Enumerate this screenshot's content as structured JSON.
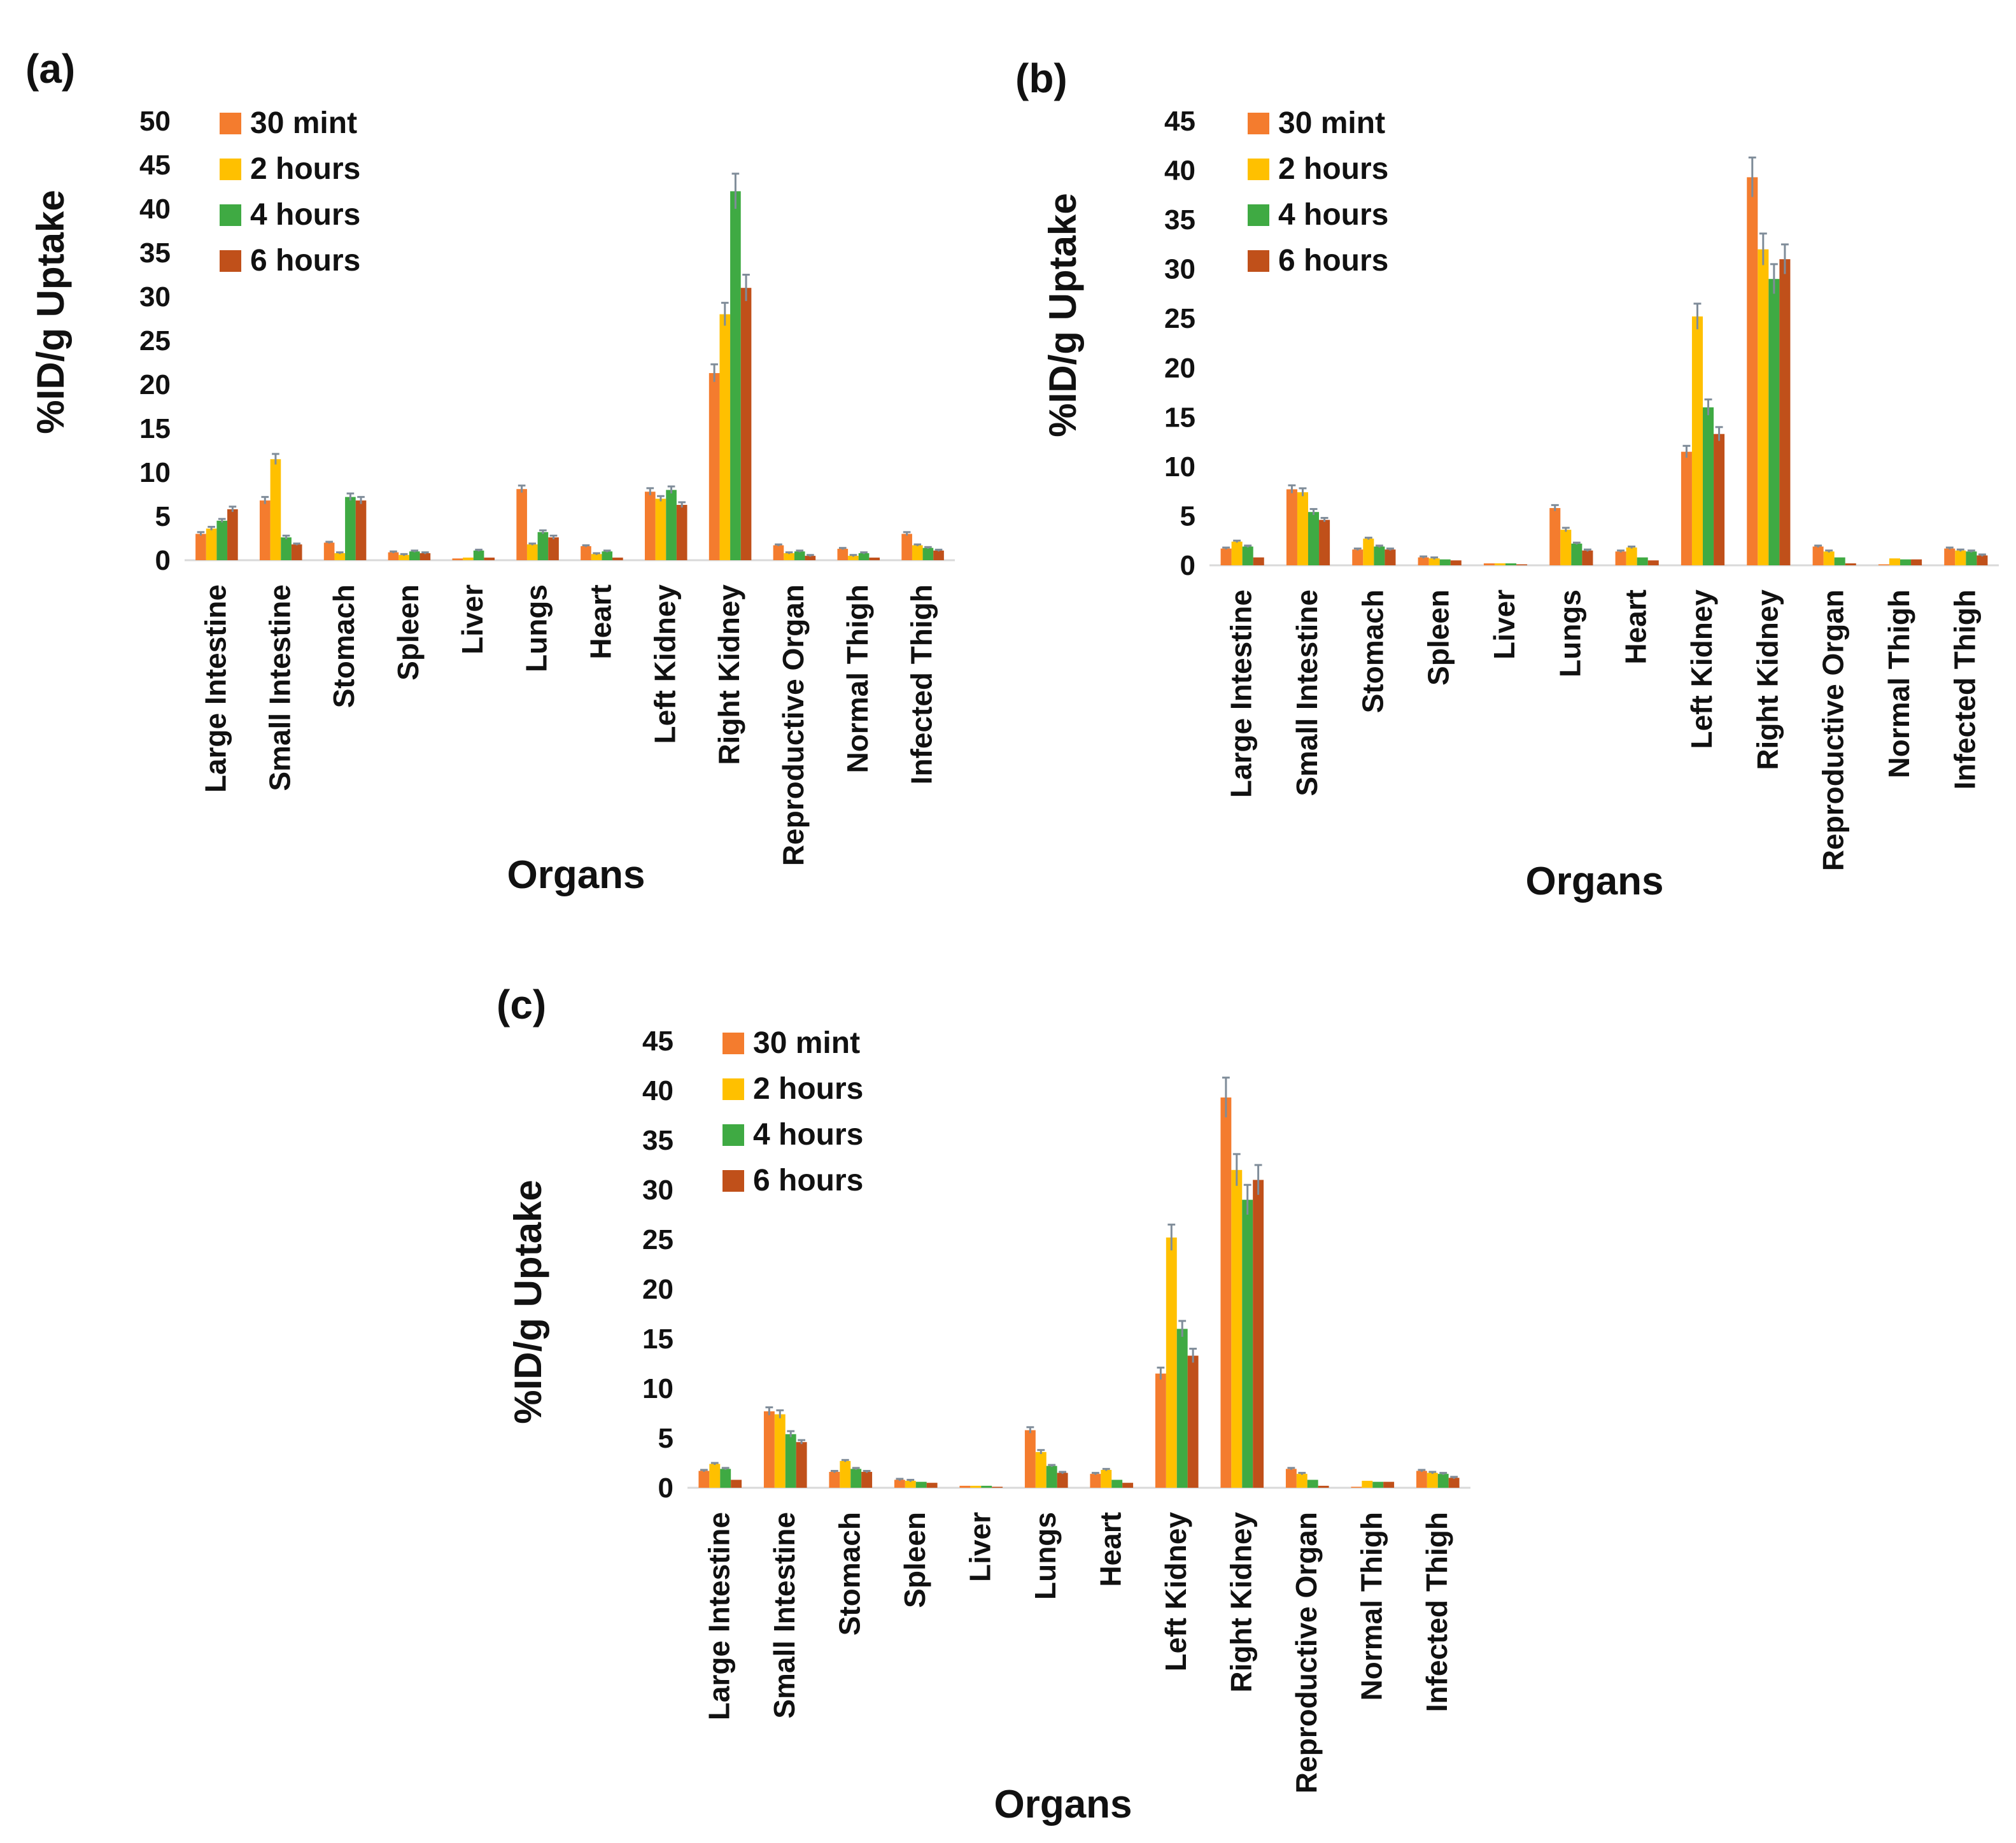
{
  "chart_data": [
    {
      "type": "bar",
      "panel_label": "(a)",
      "ylabel": "%ID/g Uptake",
      "xlabel": "Organs",
      "ylim": [
        0,
        50
      ],
      "yticks": [
        0,
        5,
        10,
        15,
        20,
        25,
        30,
        35,
        40,
        45,
        50
      ],
      "legend_position": "top-left",
      "categories": [
        "Large Intestine",
        "Small Intestine",
        "Stomach",
        "Spleen",
        "Liver",
        "Lungs",
        "Heart",
        "Left Kidney",
        "Right  Kidney",
        "Reproductive Organ",
        "Normal Thigh",
        "Infected Thigh"
      ],
      "series": [
        {
          "name": "30 mint",
          "color": "#f47c2e",
          "values": [
            3.0,
            6.8,
            2.0,
            0.9,
            0.2,
            8.1,
            1.6,
            7.8,
            21.3,
            1.7,
            1.3,
            3.0
          ],
          "errors": [
            0.2,
            0.4,
            0.1,
            0.1,
            0.0,
            0.4,
            0.1,
            0.4,
            1.0,
            0.1,
            0.1,
            0.2
          ]
        },
        {
          "name": "2 hours",
          "color": "#ffc000",
          "values": [
            3.6,
            11.5,
            0.8,
            0.6,
            0.3,
            1.8,
            0.7,
            7.0,
            28.0,
            0.8,
            0.5,
            1.7
          ],
          "errors": [
            0.2,
            0.6,
            0.1,
            0.1,
            0.0,
            0.1,
            0.1,
            0.3,
            1.3,
            0.1,
            0.1,
            0.1
          ]
        },
        {
          "name": "4 hours",
          "color": "#3faa43",
          "values": [
            4.5,
            2.6,
            7.2,
            1.0,
            1.1,
            3.2,
            1.0,
            8.0,
            42.0,
            1.0,
            0.8,
            1.4
          ],
          "errors": [
            0.2,
            0.2,
            0.4,
            0.1,
            0.1,
            0.2,
            0.1,
            0.4,
            2.0,
            0.1,
            0.1,
            0.1
          ]
        },
        {
          "name": "6 hours",
          "color": "#c0501a",
          "values": [
            5.8,
            1.8,
            6.8,
            0.8,
            0.3,
            2.6,
            0.3,
            6.3,
            31.0,
            0.5,
            0.3,
            1.1
          ],
          "errors": [
            0.3,
            0.1,
            0.4,
            0.1,
            0.0,
            0.2,
            0.0,
            0.3,
            1.5,
            0.1,
            0.0,
            0.1
          ]
        }
      ]
    },
    {
      "type": "bar",
      "panel_label": "(b)",
      "ylabel": "%ID/g Uptake",
      "xlabel": "Organs",
      "ylim": [
        0,
        45
      ],
      "yticks": [
        0,
        5,
        10,
        15,
        20,
        25,
        30,
        35,
        40,
        45
      ],
      "legend_position": "top-left",
      "categories": [
        "Large Intestine",
        "Small Intestine",
        "Stomach",
        "Spleen",
        "Liver",
        "Lungs",
        "Heart",
        "Left Kidney",
        "Right  Kidney",
        "Reproductive Organ",
        "Normal Thigh",
        "Infected Thigh"
      ],
      "series": [
        {
          "name": "30 mint",
          "color": "#f47c2e",
          "values": [
            1.7,
            7.7,
            1.6,
            0.8,
            0.2,
            5.8,
            1.4,
            11.5,
            39.3,
            1.9,
            0.1,
            1.7
          ],
          "errors": [
            0.1,
            0.4,
            0.1,
            0.1,
            0.0,
            0.3,
            0.1,
            0.6,
            2.0,
            0.1,
            0.0,
            0.1
          ]
        },
        {
          "name": "2 hours",
          "color": "#ffc000",
          "values": [
            2.4,
            7.4,
            2.7,
            0.7,
            0.2,
            3.6,
            1.8,
            25.2,
            32.0,
            1.4,
            0.7,
            1.5
          ],
          "errors": [
            0.1,
            0.4,
            0.1,
            0.1,
            0.0,
            0.2,
            0.1,
            1.3,
            1.6,
            0.1,
            0.0,
            0.1
          ]
        },
        {
          "name": "4 hours",
          "color": "#3faa43",
          "values": [
            1.9,
            5.4,
            1.9,
            0.6,
            0.2,
            2.2,
            0.8,
            16.0,
            29.0,
            0.8,
            0.6,
            1.4
          ],
          "errors": [
            0.1,
            0.3,
            0.1,
            0.0,
            0.0,
            0.1,
            0.0,
            0.8,
            1.5,
            0.0,
            0.0,
            0.1
          ]
        },
        {
          "name": "6 hours",
          "color": "#c0501a",
          "values": [
            0.8,
            4.6,
            1.6,
            0.5,
            0.1,
            1.5,
            0.5,
            13.3,
            31.0,
            0.2,
            0.6,
            1.0
          ],
          "errors": [
            0.0,
            0.2,
            0.1,
            0.0,
            0.0,
            0.1,
            0.0,
            0.7,
            1.5,
            0.0,
            0.0,
            0.1
          ]
        }
      ]
    },
    {
      "type": "bar",
      "panel_label": "(c)",
      "ylabel": "%ID/g Uptake",
      "xlabel": "Organs",
      "ylim": [
        0,
        45
      ],
      "yticks": [
        0,
        5,
        10,
        15,
        20,
        25,
        30,
        35,
        40,
        45
      ],
      "legend_position": "top-left",
      "categories": [
        "Large Intestine",
        "Small Intestine",
        "Stomach",
        "Spleen",
        "Liver",
        "Lungs",
        "Heart",
        "Left Kidney",
        "Right  Kidney",
        "Reproductive Organ",
        "Normal Thigh",
        "Infected Thigh"
      ],
      "series": [
        {
          "name": "30 mint",
          "color": "#f47c2e",
          "values": [
            1.7,
            7.7,
            1.6,
            0.8,
            0.2,
            5.8,
            1.4,
            11.5,
            39.3,
            1.9,
            0.1,
            1.7
          ],
          "errors": [
            0.1,
            0.4,
            0.1,
            0.1,
            0.0,
            0.3,
            0.1,
            0.6,
            2.0,
            0.1,
            0.0,
            0.1
          ]
        },
        {
          "name": "2 hours",
          "color": "#ffc000",
          "values": [
            2.4,
            7.4,
            2.7,
            0.7,
            0.2,
            3.6,
            1.8,
            25.2,
            32.0,
            1.4,
            0.7,
            1.5
          ],
          "errors": [
            0.1,
            0.4,
            0.1,
            0.1,
            0.0,
            0.2,
            0.1,
            1.3,
            1.6,
            0.1,
            0.0,
            0.1
          ]
        },
        {
          "name": "4 hours",
          "color": "#3faa43",
          "values": [
            1.9,
            5.4,
            1.9,
            0.6,
            0.2,
            2.2,
            0.8,
            16.0,
            29.0,
            0.8,
            0.6,
            1.4
          ],
          "errors": [
            0.1,
            0.3,
            0.1,
            0.0,
            0.0,
            0.1,
            0.0,
            0.8,
            1.5,
            0.0,
            0.0,
            0.1
          ]
        },
        {
          "name": "6 hours",
          "color": "#c0501a",
          "values": [
            0.8,
            4.6,
            1.6,
            0.5,
            0.1,
            1.5,
            0.5,
            13.3,
            31.0,
            0.2,
            0.6,
            1.0
          ],
          "errors": [
            0.0,
            0.2,
            0.1,
            0.0,
            0.0,
            0.1,
            0.0,
            0.7,
            1.5,
            0.0,
            0.0,
            0.1
          ]
        }
      ]
    }
  ]
}
